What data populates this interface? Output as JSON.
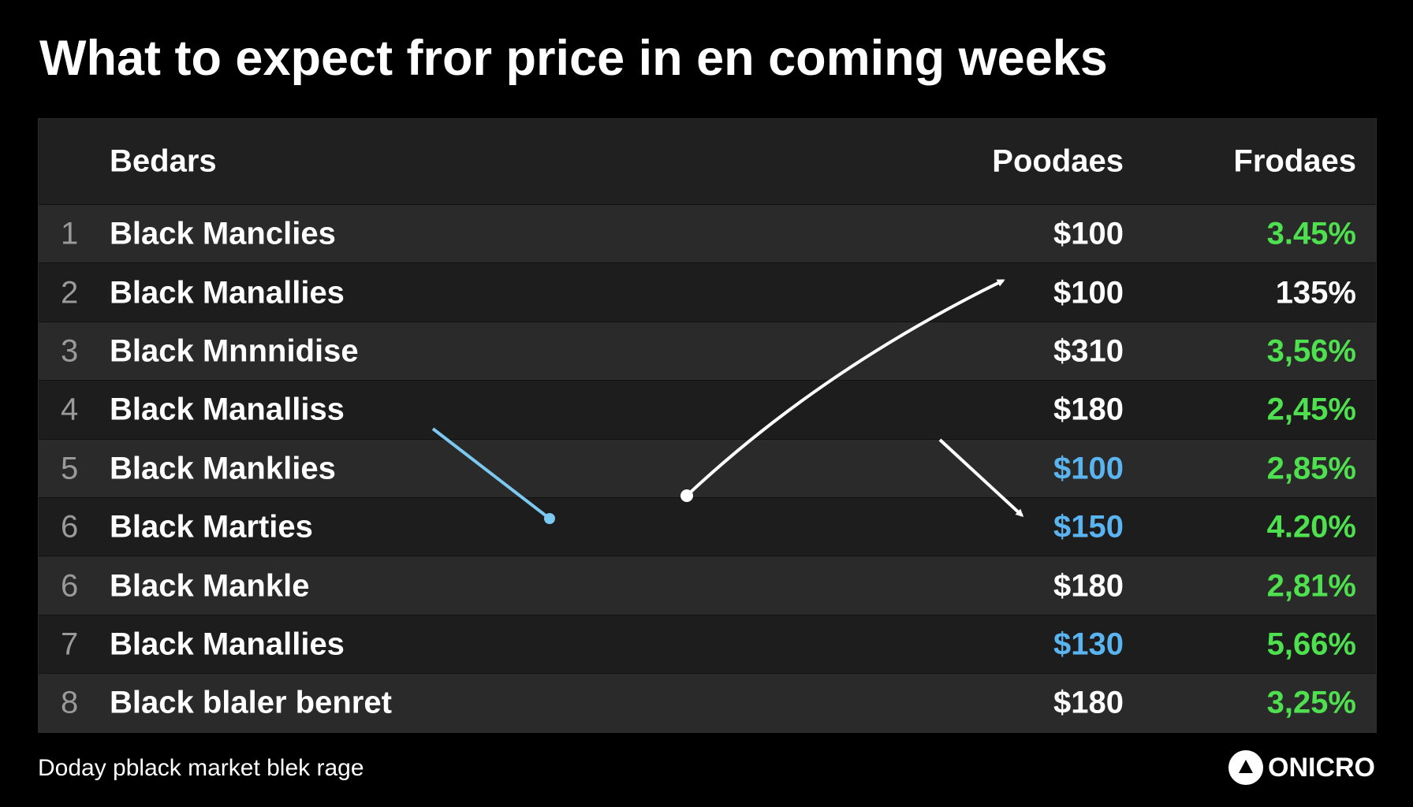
{
  "title": "What to expect fror price in en coming weeks",
  "table": {
    "headers": [
      "Bedars",
      "Poodaes",
      "Frodaes"
    ],
    "rows": [
      {
        "rank": "1",
        "name": "Black Manclies",
        "price": "$100",
        "change": "3.45%",
        "price_color": "#ffffff",
        "change_color": "#4ee04e"
      },
      {
        "rank": "2",
        "name": "Black Manallies",
        "price": "$100",
        "change": "135%",
        "price_color": "#ffffff",
        "change_color": "#ffffff"
      },
      {
        "rank": "3",
        "name": "Black Mnnnidise",
        "price": "$310",
        "change": "3,56%",
        "price_color": "#ffffff",
        "change_color": "#4ee04e"
      },
      {
        "rank": "4",
        "name": "Black Manalliss",
        "price": "$180",
        "change": "2,45%",
        "price_color": "#ffffff",
        "change_color": "#4ee04e"
      },
      {
        "rank": "5",
        "name": "Black Manklies",
        "price": "$100",
        "change": "2,85%",
        "price_color": "#5ab4f0",
        "change_color": "#4ee04e"
      },
      {
        "rank": "6",
        "name": "Black Marties",
        "price": "$150",
        "change": "4.20%",
        "price_color": "#5ab4f0",
        "change_color": "#4ee04e"
      },
      {
        "rank": "6",
        "name": "Black Mankle",
        "price": "$180",
        "change": "2,81%",
        "price_color": "#ffffff",
        "change_color": "#4ee04e"
      },
      {
        "rank": "7",
        "name": "Black Manallies",
        "price": "$130",
        "change": "5,66%",
        "price_color": "#5ab4f0",
        "change_color": "#4ee04e"
      },
      {
        "rank": "8",
        "name": "Black blaler benret",
        "price": "$180",
        "change": "3,25%",
        "price_color": "#ffffff",
        "change_color": "#4ee04e"
      }
    ]
  },
  "footer": {
    "note": "Doday pblack market blek rage",
    "logo": "ONICRO"
  }
}
